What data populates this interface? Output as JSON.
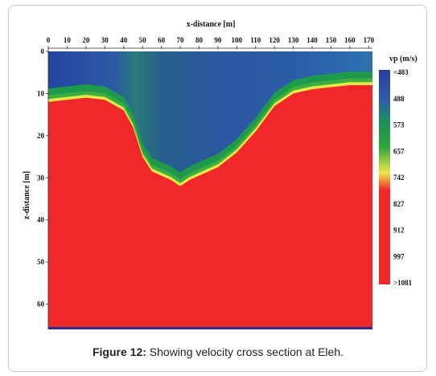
{
  "chart_data": {
    "type": "heatmap",
    "title": "",
    "xlabel": "x-distance [m]",
    "ylabel": "z-distance [m]",
    "xlim": [
      0,
      172
    ],
    "ylim": [
      0,
      66
    ],
    "y_inverted": true,
    "x_ticks": [
      0,
      10,
      20,
      30,
      40,
      50,
      60,
      70,
      80,
      90,
      100,
      110,
      120,
      130,
      140,
      150,
      160,
      170
    ],
    "y_ticks": [
      0,
      10,
      20,
      30,
      40,
      50,
      60
    ],
    "colorbar": {
      "title": "vp (m/s)",
      "labels": [
        "<403",
        "488",
        "573",
        "657",
        "742",
        "827",
        "912",
        "997",
        ">1081"
      ],
      "colors": [
        "#2a3f9e",
        "#2f5ea8",
        "#1c8f5a",
        "#2fa53c",
        "#e9e84a",
        "#f0282a",
        "#f0282a",
        "#f0282a",
        "#f0282a"
      ]
    },
    "fast_layer_top_profile": {
      "x": [
        0,
        10,
        20,
        30,
        40,
        45,
        50,
        55,
        60,
        65,
        70,
        75,
        80,
        90,
        100,
        110,
        120,
        130,
        140,
        150,
        160,
        172
      ],
      "depth": [
        12,
        11.5,
        11,
        11.5,
        14,
        18,
        25,
        28.5,
        29.5,
        30.5,
        32,
        30.5,
        29.5,
        27.5,
        24,
        19,
        13,
        10,
        9,
        8.5,
        8,
        8
      ]
    }
  },
  "caption": {
    "label": "Figure 12:",
    "text": " Showing velocity cross section at Eleh."
  }
}
